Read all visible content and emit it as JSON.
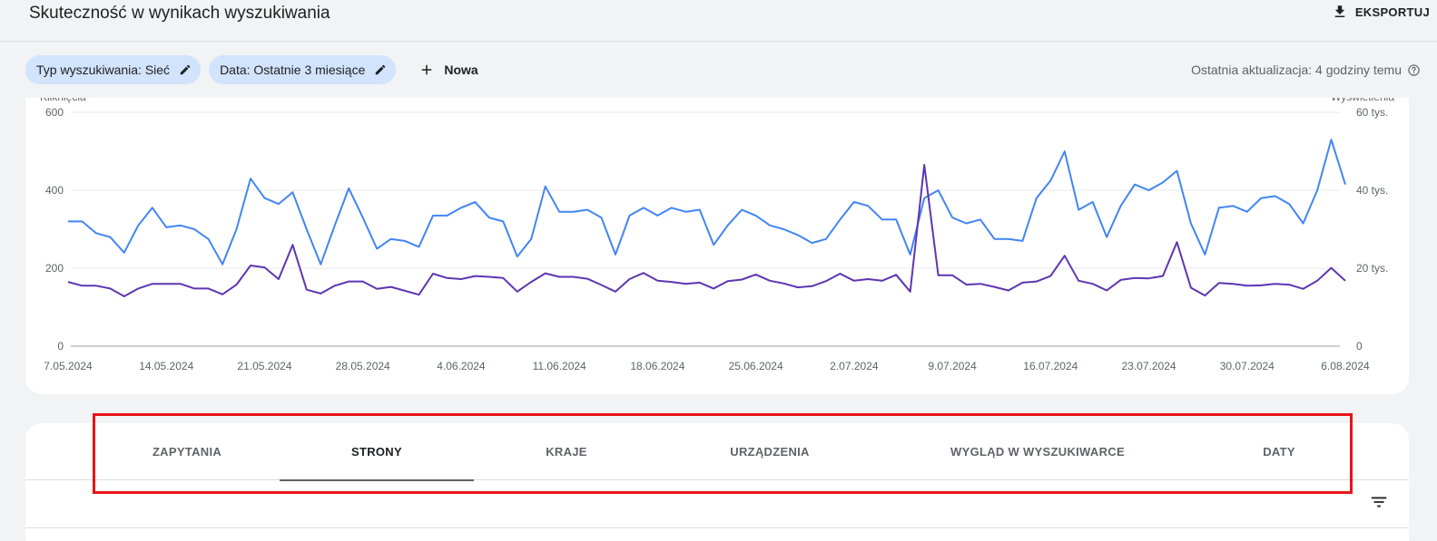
{
  "header": {
    "title": "Skuteczność w wynikach wyszukiwania",
    "export_label": "EKSPORTUJ"
  },
  "filters": {
    "chips": [
      {
        "label": "Typ wyszukiwania: Sieć"
      },
      {
        "label": "Data: Ostatnie 3 miesiące"
      }
    ],
    "add_label": "Nowa",
    "last_update": "Ostatnia aktualizacja: 4 godziny temu"
  },
  "chart_data": {
    "type": "line",
    "left_axis": {
      "title": "Kliknięcia",
      "ticks": [
        "0",
        "200",
        "400",
        "600"
      ],
      "range": [
        0,
        600
      ]
    },
    "right_axis": {
      "title": "Wyświetlenia",
      "ticks": [
        "0",
        "20 tys.",
        "40 tys.",
        "60 tys."
      ],
      "range": [
        0,
        60000
      ]
    },
    "x_labels": [
      "7.05.2024",
      "14.05.2024",
      "21.05.2024",
      "28.05.2024",
      "4.06.2024",
      "11.06.2024",
      "18.06.2024",
      "25.06.2024",
      "2.07.2024",
      "9.07.2024",
      "16.07.2024",
      "23.07.2024",
      "30.07.2024",
      "6.08.2024"
    ],
    "grid": true,
    "series": [
      {
        "name": "Wyświetlenia",
        "axis": "right",
        "color": "#4285f4",
        "values": [
          32000,
          32000,
          29000,
          28000,
          24000,
          31000,
          35500,
          30500,
          31000,
          30000,
          27500,
          21000,
          30000,
          43000,
          38000,
          36500,
          39500,
          30000,
          21000,
          31000,
          40500,
          33000,
          25000,
          27500,
          27000,
          25500,
          33500,
          33500,
          35500,
          37000,
          33000,
          32000,
          23000,
          27500,
          41000,
          34500,
          34500,
          35000,
          33000,
          23500,
          33500,
          35500,
          33500,
          35500,
          34500,
          35000,
          26000,
          31000,
          35000,
          33500,
          31000,
          30000,
          28500,
          26500,
          27500,
          32500,
          37000,
          36000,
          32500,
          32500,
          23500,
          38000,
          40000,
          33000,
          31500,
          32500,
          27500,
          27500,
          27000,
          38000,
          42500,
          50000,
          35000,
          37000,
          28000,
          36000,
          41500,
          40000,
          42000,
          45000,
          31500,
          23500,
          35500,
          36000,
          34500,
          38000,
          38500,
          36500,
          31500,
          40000,
          53000,
          41500
        ]
      },
      {
        "name": "Kliknięcia",
        "axis": "left",
        "color": "#5e35b1",
        "values": [
          165,
          155,
          155,
          148,
          128,
          148,
          160,
          160,
          160,
          148,
          148,
          133,
          158,
          207,
          202,
          172,
          260,
          145,
          135,
          155,
          166,
          166,
          147,
          152,
          142,
          132,
          186,
          175,
          172,
          180,
          178,
          175,
          140,
          165,
          187,
          178,
          178,
          173,
          157,
          140,
          172,
          188,
          168,
          165,
          160,
          163,
          148,
          167,
          171,
          184,
          168,
          161,
          151,
          154,
          167,
          186,
          168,
          172,
          168,
          183,
          140,
          465,
          182,
          182,
          158,
          160,
          152,
          143,
          163,
          166,
          180,
          232,
          168,
          160,
          143,
          170,
          175,
          174,
          180,
          267,
          150,
          130,
          162,
          160,
          155,
          156,
          160,
          158,
          147,
          168,
          201,
          168
        ]
      }
    ]
  },
  "tabs": [
    {
      "label": "ZAPYTANIA",
      "active": false
    },
    {
      "label": "STRONY",
      "active": true
    },
    {
      "label": "KRAJE",
      "active": false
    },
    {
      "label": "URZĄDZENIA",
      "active": false
    },
    {
      "label": "WYGLĄD W WYSZUKIWARCE",
      "active": false
    },
    {
      "label": "DATY",
      "active": false
    }
  ],
  "colors": {
    "chip_bg": "#d2e3fc",
    "impressions_line": "#4285f4",
    "clicks_line": "#5e35b1",
    "highlight_border": "#e8141b"
  }
}
